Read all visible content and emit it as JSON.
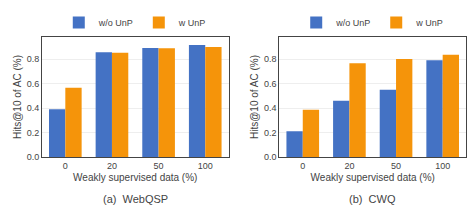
{
  "chart_data": [
    {
      "type": "bar",
      "title": "(a)  WebQSP",
      "categories": [
        "0",
        "20",
        "50",
        "100"
      ],
      "series": [
        {
          "name": "w/o UnP",
          "color": "#4472c4",
          "values": [
            0.39,
            0.855,
            0.89,
            0.915
          ]
        },
        {
          "name": "w UnP",
          "color": "#f5940a",
          "values": [
            0.565,
            0.851,
            0.888,
            0.898
          ]
        }
      ],
      "x_label": "Weakly supervised data (%)",
      "y_label": "Hits@10 of AC (%)",
      "ylim": [
        0.0,
        0.98
      ],
      "yticks": [
        {
          "value": 0.0,
          "label": "0.0"
        },
        0.2,
        0.4,
        0.6,
        0.8
      ],
      "grid": true,
      "legend": "top"
    },
    {
      "type": "bar",
      "title": "(b)  CWQ",
      "categories": [
        "0",
        "20",
        "50",
        "100"
      ],
      "series": [
        {
          "name": "w/o UnP",
          "color": "#4472c4",
          "values": [
            0.21,
            0.46,
            0.55,
            0.79
          ]
        },
        {
          "name": "w UnP",
          "color": "#f5940a",
          "values": [
            0.385,
            0.765,
            0.8,
            0.835
          ]
        }
      ],
      "x_label": "Weakly supervised data (%)",
      "y_label": "Hits@10 of AC (%)",
      "ylim": [
        0.0,
        0.98
      ],
      "yticks": [
        {
          "value": 0.0,
          "label": "0.0"
        },
        0.2,
        0.4,
        0.6,
        0.8
      ],
      "grid": true,
      "legend": "top"
    }
  ]
}
